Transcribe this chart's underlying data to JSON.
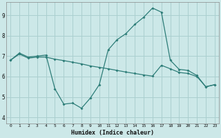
{
  "xlabel": "Humidex (Indice chaleur)",
  "background_color": "#cce8e8",
  "grid_color": "#aacfcf",
  "line_color": "#2d7d78",
  "xlim": [
    -0.5,
    23.5
  ],
  "ylim": [
    3.7,
    9.65
  ],
  "xticks": [
    0,
    1,
    2,
    3,
    4,
    5,
    6,
    7,
    8,
    9,
    10,
    11,
    12,
    13,
    14,
    15,
    16,
    17,
    18,
    19,
    20,
    21,
    22,
    23
  ],
  "yticks": [
    4,
    5,
    6,
    7,
    8,
    9
  ],
  "line1_x": [
    0,
    1,
    2,
    3,
    4,
    5,
    6,
    7,
    8,
    9,
    10,
    11,
    12,
    13,
    14,
    15,
    16,
    17,
    18,
    19,
    20,
    21,
    22,
    23
  ],
  "line1_y": [
    6.8,
    7.15,
    6.95,
    7.0,
    7.05,
    5.4,
    4.65,
    4.7,
    4.45,
    4.95,
    5.6,
    7.3,
    7.8,
    8.1,
    8.55,
    8.9,
    9.35,
    9.15,
    6.8,
    6.35,
    6.3,
    6.05,
    5.5,
    5.6
  ],
  "line2_x": [
    0,
    1,
    2,
    3,
    4,
    5,
    6,
    7,
    8,
    9,
    10,
    11,
    12,
    13,
    14,
    15,
    16,
    17,
    18,
    19,
    20,
    21,
    22,
    23
  ],
  "line2_y": [
    6.8,
    7.1,
    6.9,
    6.95,
    6.95,
    6.85,
    6.78,
    6.7,
    6.62,
    6.52,
    6.45,
    6.38,
    6.3,
    6.22,
    6.15,
    6.08,
    6.02,
    6.55,
    6.38,
    6.2,
    6.15,
    6.0,
    5.5,
    5.6
  ]
}
